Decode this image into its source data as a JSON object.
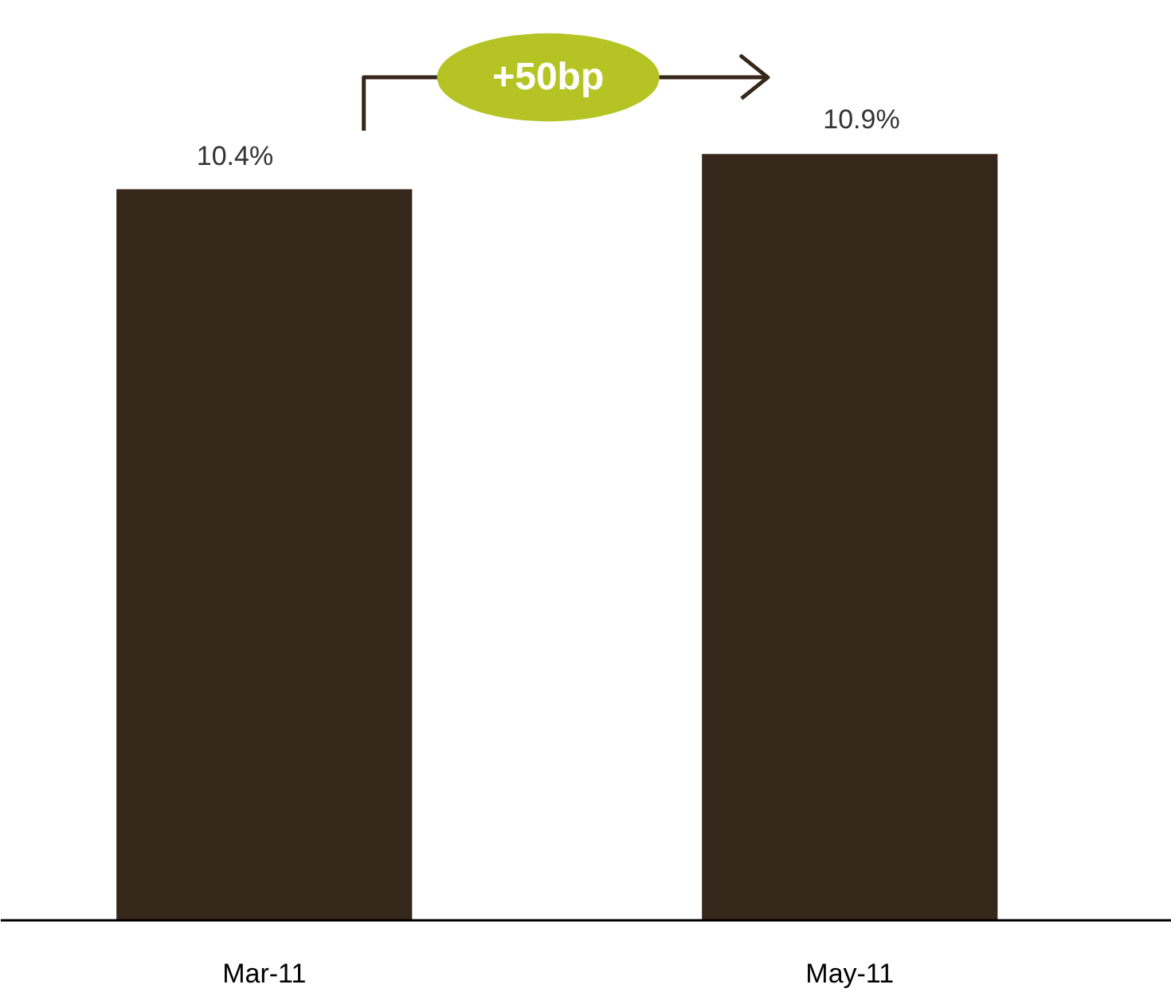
{
  "chart_data": {
    "type": "bar",
    "categories": [
      "Mar-11",
      "May-11"
    ],
    "values": [
      10.4,
      10.9
    ],
    "value_labels": [
      "10.4%",
      "10.9%"
    ],
    "color": "#36271b",
    "annotations": [
      "+50bp"
    ]
  }
}
